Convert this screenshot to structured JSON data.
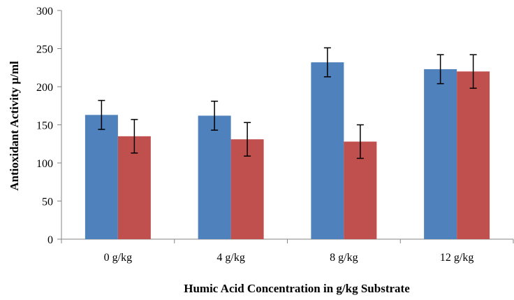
{
  "chart_data": {
    "type": "bar",
    "title": "",
    "xlabel": "Humic Acid Concentration in g/kg Substrate",
    "ylabel": "Antioxidant Activity µ/ml",
    "categories": [
      "0 g/kg",
      "4 g/kg",
      "8 g/kg",
      "12 g/kg"
    ],
    "ylim": [
      0,
      300
    ],
    "yticks": [
      0,
      50,
      100,
      150,
      200,
      250,
      300
    ],
    "grid": false,
    "legend": "none",
    "series": [
      {
        "color": "#4f81bd",
        "values": [
          163,
          162,
          232,
          223
        ],
        "errors": [
          19,
          19,
          19,
          19
        ]
      },
      {
        "color": "#c0504d",
        "values": [
          135,
          131,
          128,
          220
        ],
        "errors": [
          22,
          22,
          22,
          22
        ]
      }
    ]
  }
}
